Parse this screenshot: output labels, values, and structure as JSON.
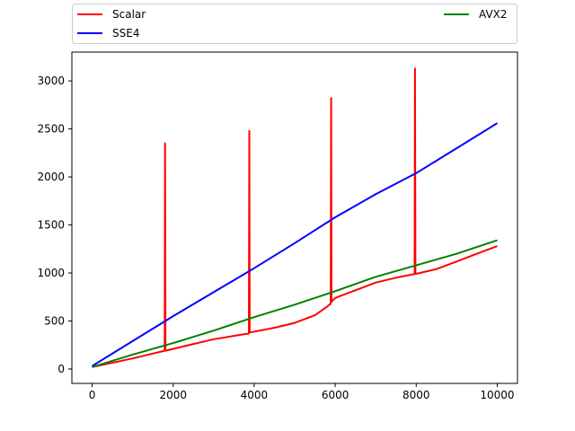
{
  "chart_data": {
    "type": "line",
    "title": "",
    "xlabel": "",
    "ylabel": "",
    "xlim": [
      -500,
      10500
    ],
    "ylim": [
      -150,
      3300
    ],
    "xticks": [
      0,
      2000,
      4000,
      6000,
      8000,
      10000
    ],
    "yticks": [
      0,
      500,
      1000,
      1500,
      2000,
      2500,
      3000
    ],
    "grid": false,
    "legend": {
      "placement": "top, outside plot, 2 columns",
      "entries": [
        "Scalar",
        "SSE4",
        "AVX2"
      ]
    },
    "series": [
      {
        "name": "Scalar",
        "color": "#ff0000",
        "x": [
          0,
          1000,
          1790,
          1800,
          1810,
          2500,
          3000,
          3870,
          3880,
          3890,
          4500,
          5000,
          5500,
          5800,
          5890,
          5900,
          5910,
          6000,
          6500,
          7000,
          7500,
          7960,
          7970,
          7980,
          8500,
          9000,
          9500,
          10000
        ],
        "y": [
          20,
          110,
          190,
          2350,
          190,
          260,
          310,
          370,
          2480,
          380,
          430,
          480,
          560,
          650,
          680,
          2820,
          700,
          740,
          820,
          900,
          950,
          990,
          3130,
          990,
          1040,
          1120,
          1200,
          1280
        ]
      },
      {
        "name": "SSE4",
        "color": "#0000ff",
        "x": [
          0,
          1000,
          2000,
          3000,
          4000,
          5000,
          6000,
          7000,
          8000,
          9000,
          10000
        ],
        "y": [
          30,
          290,
          550,
          800,
          1050,
          1310,
          1580,
          1820,
          2040,
          2300,
          2560
        ]
      },
      {
        "name": "AVX2",
        "color": "#008000",
        "x": [
          0,
          1000,
          2000,
          3000,
          4000,
          5000,
          6000,
          7000,
          8000,
          9000,
          10000
        ],
        "y": [
          20,
          150,
          270,
          400,
          540,
          670,
          810,
          960,
          1080,
          1200,
          1340
        ]
      }
    ]
  }
}
